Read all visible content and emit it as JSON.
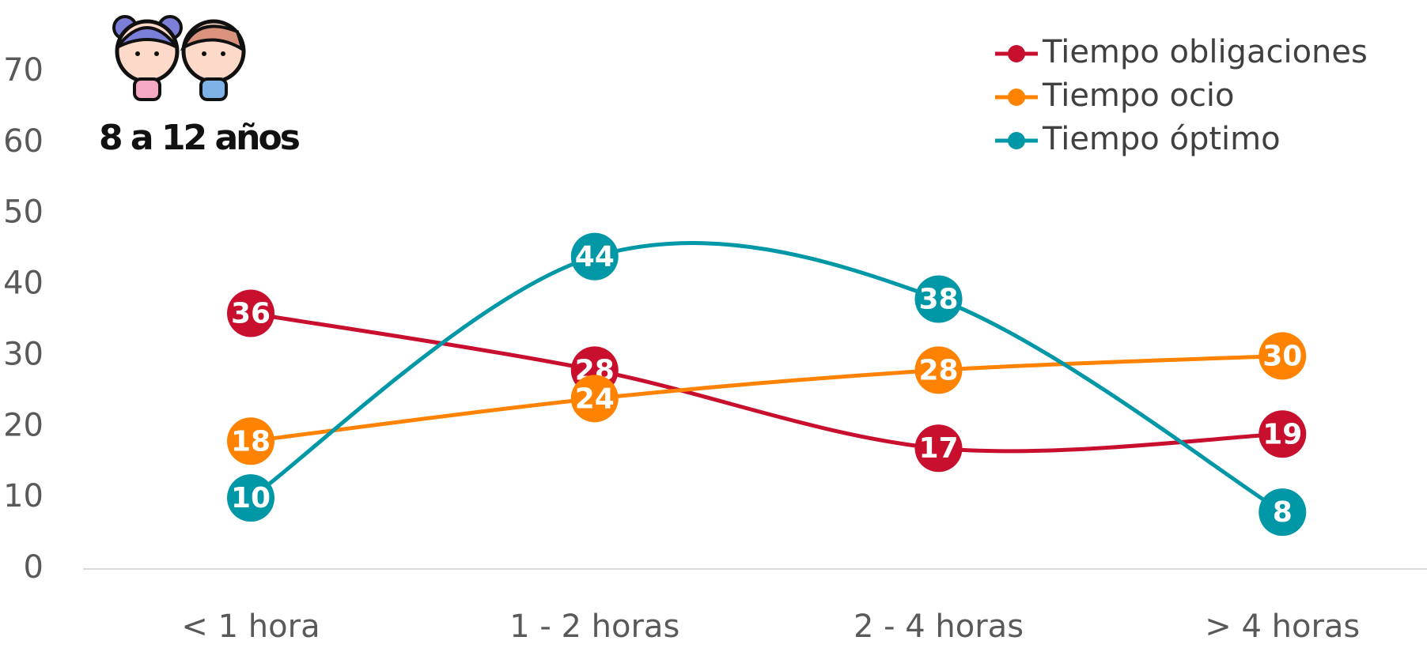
{
  "chart_data": {
    "type": "line",
    "annotation": "8 a 12 años",
    "categories": [
      "< 1 hora",
      "1 - 2 horas",
      "2 - 4 horas",
      "> 4 horas"
    ],
    "series": [
      {
        "name": "Tiempo obligaciones",
        "color": "#c8102e",
        "values": [
          36,
          28,
          17,
          19
        ]
      },
      {
        "name": "Tiempo ocio",
        "color": "#ff8200",
        "values": [
          18,
          24,
          28,
          30
        ]
      },
      {
        "name": "Tiempo óptimo",
        "color": "#0097a7",
        "values": [
          10,
          44,
          38,
          8
        ]
      }
    ],
    "ylim": [
      0,
      70
    ],
    "yticks": [
      0,
      10,
      20,
      30,
      40,
      50,
      60,
      70
    ],
    "smooth": true,
    "legend": "top-right",
    "data_labels": true
  }
}
